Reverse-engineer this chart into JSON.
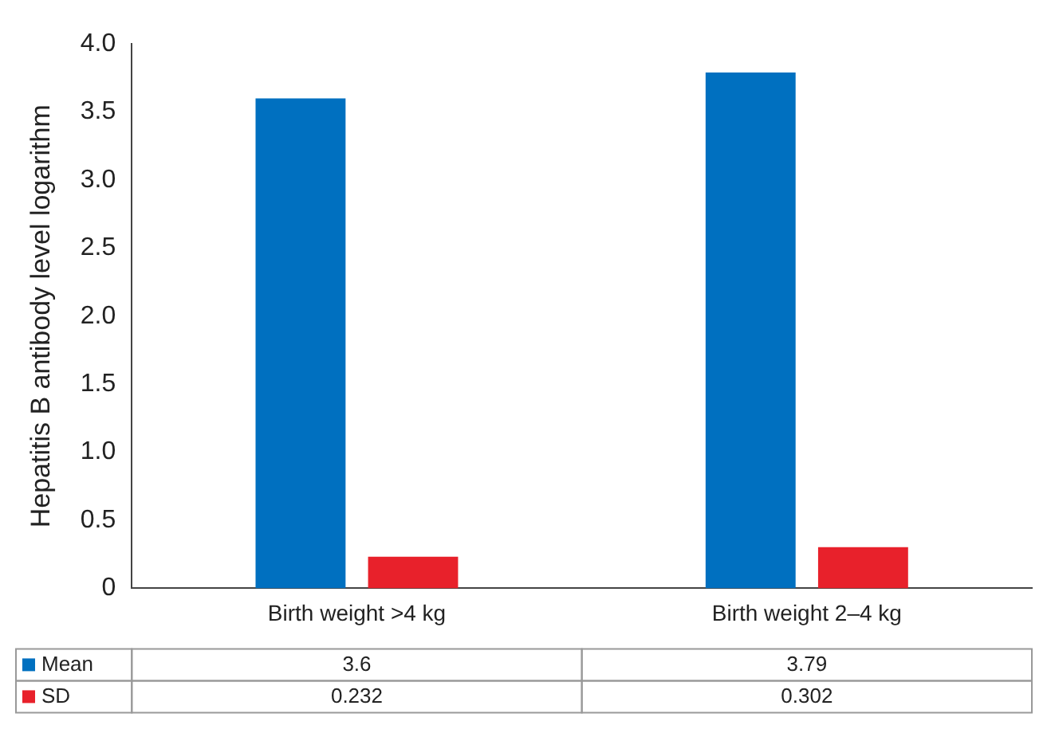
{
  "chart_data": {
    "type": "bar",
    "ylabel": "Hepatitis B antibody level logarithm",
    "categories": [
      "Birth weight >4 kg",
      "Birth weight 2–4 kg"
    ],
    "series": [
      {
        "name": "Mean",
        "color": "#0070c0",
        "values": [
          3.6,
          3.79
        ]
      },
      {
        "name": "SD",
        "color": "#e8212b",
        "values": [
          0.232,
          0.302
        ]
      }
    ],
    "ylim": [
      0,
      4
    ],
    "yticks": [
      0,
      {
        "value": 0.5,
        "label": "0.5"
      },
      {
        "value": 1,
        "label": "1.0"
      },
      {
        "value": 1.5,
        "label": "1.5"
      },
      {
        "value": 2,
        "label": "2.0"
      },
      {
        "value": 2.5,
        "label": "2.5"
      },
      {
        "value": 3,
        "label": "3.0"
      },
      {
        "value": 3.5,
        "label": "3.5"
      },
      {
        "value": 4,
        "label": "4.0"
      }
    ],
    "grid": false,
    "legend": "bottom",
    "data_labels": true
  }
}
